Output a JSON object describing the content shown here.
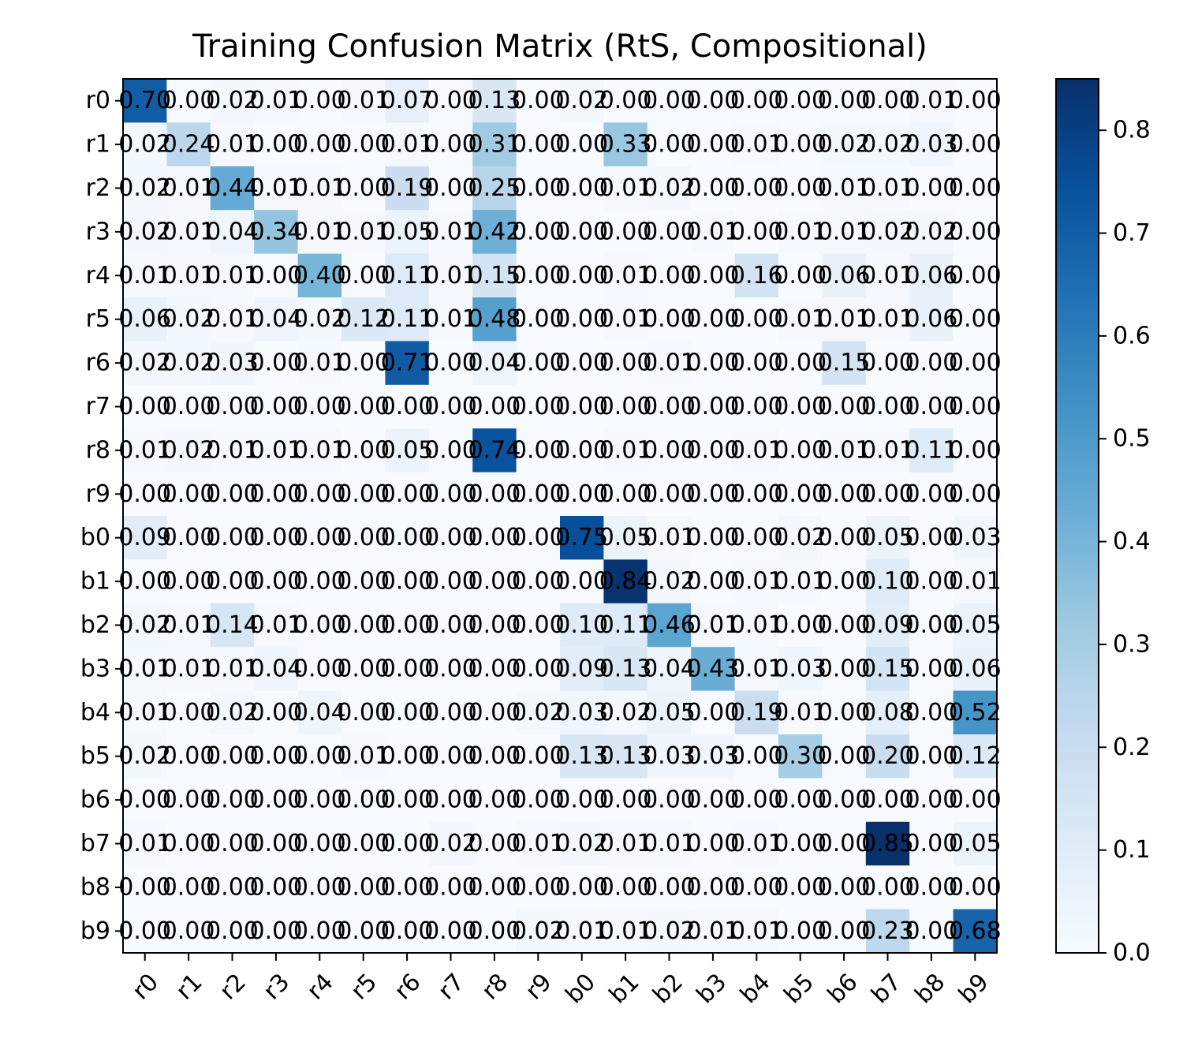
{
  "chart_data": {
    "type": "heatmap",
    "title": "Training Confusion Matrix (RtS, Compositional)",
    "xlabel": "",
    "ylabel": "",
    "x_categories": [
      "r0",
      "r1",
      "r2",
      "r3",
      "r4",
      "r5",
      "r6",
      "r7",
      "r8",
      "r9",
      "b0",
      "b1",
      "b2",
      "b3",
      "b4",
      "b5",
      "b6",
      "b7",
      "b8",
      "b9"
    ],
    "y_categories": [
      "r0",
      "r1",
      "r2",
      "r3",
      "r4",
      "r5",
      "r6",
      "r7",
      "r8",
      "r9",
      "b0",
      "b1",
      "b2",
      "b3",
      "b4",
      "b5",
      "b6",
      "b7",
      "b8",
      "b9"
    ],
    "values": [
      [
        0.7,
        0.0,
        0.02,
        0.01,
        0.0,
        0.01,
        0.07,
        0.0,
        0.13,
        0.0,
        0.02,
        0.0,
        0.0,
        0.0,
        0.0,
        0.0,
        0.0,
        0.0,
        0.01,
        0.0
      ],
      [
        0.02,
        0.24,
        0.01,
        0.0,
        0.0,
        0.0,
        0.01,
        0.0,
        0.31,
        0.0,
        0.0,
        0.33,
        0.0,
        0.0,
        0.01,
        0.0,
        0.02,
        0.02,
        0.03,
        0.0
      ],
      [
        0.02,
        0.01,
        0.44,
        0.01,
        0.01,
        0.0,
        0.19,
        0.0,
        0.25,
        0.0,
        0.0,
        0.01,
        0.02,
        0.0,
        0.0,
        0.0,
        0.01,
        0.01,
        0.0,
        0.0
      ],
      [
        0.02,
        0.01,
        0.04,
        0.34,
        0.01,
        0.01,
        0.05,
        0.01,
        0.42,
        0.0,
        0.0,
        0.0,
        0.0,
        0.01,
        0.0,
        0.01,
        0.01,
        0.02,
        0.02,
        0.0
      ],
      [
        0.01,
        0.01,
        0.01,
        0.0,
        0.4,
        0.0,
        0.11,
        0.01,
        0.15,
        0.0,
        0.0,
        0.01,
        0.0,
        0.0,
        0.16,
        0.0,
        0.06,
        0.01,
        0.06,
        0.0
      ],
      [
        0.06,
        0.02,
        0.01,
        0.04,
        0.02,
        0.12,
        0.11,
        0.01,
        0.48,
        0.0,
        0.0,
        0.01,
        0.0,
        0.0,
        0.0,
        0.01,
        0.01,
        0.01,
        0.06,
        0.0
      ],
      [
        0.02,
        0.02,
        0.03,
        0.0,
        0.01,
        0.0,
        0.71,
        0.0,
        0.04,
        0.0,
        0.0,
        0.0,
        0.01,
        0.0,
        0.0,
        0.0,
        0.15,
        0.0,
        0.0,
        0.0
      ],
      [
        0.0,
        0.0,
        0.0,
        0.0,
        0.0,
        0.0,
        0.0,
        0.0,
        0.0,
        0.0,
        0.0,
        0.0,
        0.0,
        0.0,
        0.0,
        0.0,
        0.0,
        0.0,
        0.0,
        0.0
      ],
      [
        0.01,
        0.02,
        0.01,
        0.01,
        0.01,
        0.0,
        0.05,
        0.0,
        0.74,
        0.0,
        0.0,
        0.01,
        0.0,
        0.0,
        0.01,
        0.0,
        0.01,
        0.01,
        0.11,
        0.0
      ],
      [
        0.0,
        0.0,
        0.0,
        0.0,
        0.0,
        0.0,
        0.0,
        0.0,
        0.0,
        0.0,
        0.0,
        0.0,
        0.0,
        0.0,
        0.0,
        0.0,
        0.0,
        0.0,
        0.0,
        0.0
      ],
      [
        0.09,
        0.0,
        0.0,
        0.0,
        0.0,
        0.0,
        0.0,
        0.0,
        0.0,
        0.0,
        0.75,
        0.05,
        0.01,
        0.0,
        0.0,
        0.02,
        0.0,
        0.05,
        0.0,
        0.03
      ],
      [
        0.0,
        0.0,
        0.0,
        0.0,
        0.0,
        0.0,
        0.0,
        0.0,
        0.0,
        0.0,
        0.0,
        0.84,
        0.02,
        0.0,
        0.01,
        0.01,
        0.0,
        0.1,
        0.0,
        0.01
      ],
      [
        0.02,
        0.01,
        0.14,
        0.01,
        0.0,
        0.0,
        0.0,
        0.0,
        0.0,
        0.0,
        0.1,
        0.11,
        0.46,
        0.01,
        0.01,
        0.0,
        0.0,
        0.09,
        0.0,
        0.05
      ],
      [
        0.01,
        0.01,
        0.01,
        0.04,
        0.0,
        0.0,
        0.0,
        0.0,
        0.0,
        0.0,
        0.09,
        0.13,
        0.04,
        0.43,
        0.01,
        0.03,
        0.0,
        0.15,
        0.0,
        0.06
      ],
      [
        0.01,
        0.0,
        0.02,
        0.0,
        0.04,
        0.0,
        0.0,
        0.0,
        0.0,
        0.02,
        0.03,
        0.02,
        0.05,
        0.0,
        0.19,
        0.01,
        0.0,
        0.08,
        0.0,
        0.52
      ],
      [
        0.02,
        0.0,
        0.0,
        0.0,
        0.0,
        0.01,
        0.0,
        0.0,
        0.0,
        0.0,
        0.13,
        0.13,
        0.03,
        0.03,
        0.0,
        0.3,
        0.0,
        0.2,
        0.0,
        0.12
      ],
      [
        0.0,
        0.0,
        0.0,
        0.0,
        0.0,
        0.0,
        0.0,
        0.0,
        0.0,
        0.0,
        0.0,
        0.0,
        0.0,
        0.0,
        0.0,
        0.0,
        0.0,
        0.0,
        0.0,
        0.0
      ],
      [
        0.01,
        0.0,
        0.0,
        0.0,
        0.0,
        0.0,
        0.0,
        0.02,
        0.0,
        0.01,
        0.02,
        0.01,
        0.01,
        0.0,
        0.01,
        0.0,
        0.0,
        0.85,
        0.0,
        0.05
      ],
      [
        0.0,
        0.0,
        0.0,
        0.0,
        0.0,
        0.0,
        0.0,
        0.0,
        0.0,
        0.0,
        0.0,
        0.0,
        0.0,
        0.0,
        0.0,
        0.0,
        0.0,
        0.0,
        0.0,
        0.0
      ],
      [
        0.0,
        0.0,
        0.0,
        0.0,
        0.0,
        0.0,
        0.0,
        0.0,
        0.0,
        0.02,
        0.01,
        0.01,
        0.02,
        0.01,
        0.01,
        0.0,
        0.0,
        0.23,
        0.0,
        0.68
      ]
    ],
    "colormap": "Blues",
    "color_low": "#f7fbff",
    "color_high": "#08306b",
    "vmin": 0.0,
    "vmax": 0.85,
    "colorbar_ticks": [
      "0.0",
      "0.1",
      "0.2",
      "0.3",
      "0.4",
      "0.5",
      "0.6",
      "0.7",
      "0.8"
    ],
    "value_format": "0.00",
    "grid": false,
    "legend": "colorbar-right"
  }
}
